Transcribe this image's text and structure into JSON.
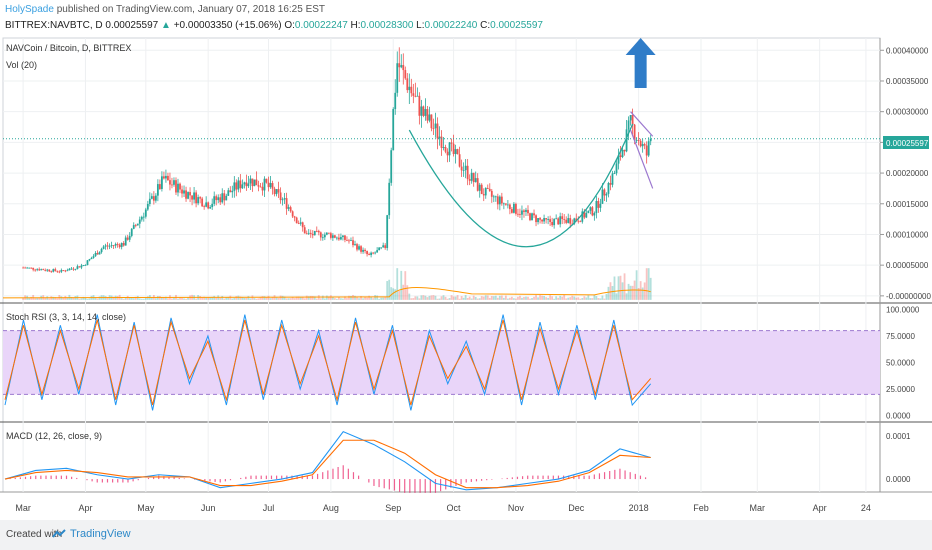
{
  "header": {
    "author": "HolySpade",
    "published": "published on TradingView.com, January 07, 2018 16:25 EST",
    "symbol": "BITTREX:NAVBTC, D",
    "price": "0.00025597",
    "change_arrow": "▲",
    "change": "+0.00003350 (+15.06%)",
    "o_label": "O:",
    "o": "0.00022247",
    "h_label": "H:",
    "h": "0.00028300",
    "l_label": "L:",
    "l": "0.00022240",
    "c_label": "C:",
    "c": "0.00025597"
  },
  "main_pane": {
    "title": "NAVCoin / Bitcoin, D, BITTREX",
    "volume_label": "Vol (20)",
    "last_price_badge": "0.00025597"
  },
  "stoch_pane": {
    "title": "Stoch RSI (3, 3, 14, 14, close)"
  },
  "macd_pane": {
    "title": "MACD (12, 26, close, 9)"
  },
  "footer": {
    "created_with": "Created with",
    "brand": "TradingView"
  },
  "colors": {
    "up": "#26a69a",
    "down": "#ef5350",
    "k_line": "#2196f3",
    "d_line": "#ff6d00",
    "rsi_band": "#e9d5f9",
    "cup": "#26a69a",
    "wedge": "#9c78cf",
    "arrow": "#2f7cc8"
  },
  "chart_data": [
    {
      "type": "candlestick",
      "title": "NAVCoin / Bitcoin, D, BITTREX",
      "x_axis": {
        "tick_labels": [
          "Mar",
          "Apr",
          "May",
          "Jun",
          "Jul",
          "Aug",
          "Sep",
          "Oct",
          "Nov",
          "Dec",
          "2018",
          "Feb",
          "Mar",
          "Apr",
          "24"
        ]
      },
      "y_axis": {
        "tick_labels": [
          "0.00040000",
          "0.00035000",
          "0.00030000",
          "0.00025000",
          "0.00020000",
          "0.00015000",
          "0.00010000",
          "0.00005000",
          "-0.00000000"
        ],
        "range": [
          -1e-05,
          0.00042
        ]
      },
      "last_price": 0.00025597,
      "close_path": [
        [
          "2017-03-01",
          4.6e-05
        ],
        [
          "2017-03-20",
          4e-05
        ],
        [
          "2017-03-31",
          5e-05
        ],
        [
          "2017-04-10",
          8e-05
        ],
        [
          "2017-04-20",
          8.5e-05
        ],
        [
          "2017-05-01",
          0.00014
        ],
        [
          "2017-05-10",
          0.00019
        ],
        [
          "2017-05-20",
          0.00017
        ],
        [
          "2017-06-01",
          0.00015
        ],
        [
          "2017-06-10",
          0.000165
        ],
        [
          "2017-06-20",
          0.00019
        ],
        [
          "2017-06-30",
          0.00018
        ],
        [
          "2017-07-10",
          0.00015
        ],
        [
          "2017-07-20",
          0.0001
        ],
        [
          "2017-07-31",
          0.0001
        ],
        [
          "2017-08-10",
          9e-05
        ],
        [
          "2017-08-20",
          6.5e-05
        ],
        [
          "2017-08-28",
          8e-05
        ],
        [
          "2017-09-01",
          0.0003
        ],
        [
          "2017-09-03",
          0.00038
        ],
        [
          "2017-09-15",
          0.0003
        ],
        [
          "2017-10-01",
          0.00023
        ],
        [
          "2017-10-15",
          0.00017
        ],
        [
          "2017-11-01",
          0.00014
        ],
        [
          "2017-11-15",
          0.00012
        ],
        [
          "2017-12-01",
          0.000125
        ],
        [
          "2017-12-10",
          0.00014
        ],
        [
          "2017-12-20",
          0.0002
        ],
        [
          "2017-12-28",
          0.00028
        ],
        [
          "2018-01-05",
          0.00023
        ],
        [
          "2018-01-07",
          0.00025597
        ]
      ],
      "annotations": [
        "cup curve (Sep–Dec 2017)",
        "falling wedge (late Dec–Jan)",
        "blue up arrow",
        "last price line"
      ]
    },
    {
      "type": "line",
      "title": "Stoch RSI (3, 3, 14, 14, close)",
      "y_axis": {
        "tick_labels": [
          "100.0000",
          "75.0000",
          "50.0000",
          "25.0000",
          "0.0000"
        ],
        "range": [
          -5,
          105
        ]
      },
      "bands": [
        20,
        80
      ],
      "series": [
        {
          "values": [
            10,
            90,
            15,
            85,
            20,
            95,
            10,
            88,
            5,
            92,
            30,
            75,
            10,
            95,
            15,
            90,
            25,
            80,
            10,
            92,
            20,
            85,
            5,
            80,
            30,
            70,
            20,
            95,
            10,
            88,
            20,
            85,
            15,
            90,
            10,
            30
          ]
        },
        {
          "values": [
            15,
            85,
            20,
            80,
            25,
            90,
            15,
            85,
            10,
            88,
            35,
            70,
            15,
            90,
            20,
            85,
            30,
            75,
            15,
            88,
            25,
            80,
            10,
            75,
            35,
            65,
            25,
            90,
            15,
            82,
            25,
            80,
            20,
            85,
            15,
            35
          ]
        }
      ]
    },
    {
      "type": "line",
      "title": "MACD (12, 26, close, 9)",
      "y_axis": {
        "tick_labels": [
          "0.0001",
          "0.0000"
        ],
        "range": [
          -3e-05,
          0.00013
        ]
      },
      "series": [
        {
          "values": [
            0.0,
            2e-05,
            2.5e-05,
            1e-05,
            0.0,
            1e-05,
            5e-06,
            -2e-05,
            -1e-05,
            0.0,
            1.5e-05,
            0.00011,
            8e-05,
            4e-05,
            -1e-05,
            -2.5e-05,
            -2e-05,
            -1e-05,
            0.0,
            2e-05,
            7e-05,
            5e-05
          ]
        },
        {
          "values": [
            0.0,
            1.5e-05,
            2e-05,
            1.5e-05,
            5e-06,
            5e-06,
            5e-06,
            -1.5e-05,
            -1.5e-05,
            -5e-06,
            1e-05,
            9e-05,
            9e-05,
            6e-05,
            1e-05,
            -2e-05,
            -2e-05,
            -1.5e-05,
            -5e-06,
            1.5e-05,
            5.5e-05,
            5e-05
          ]
        }
      ]
    }
  ]
}
